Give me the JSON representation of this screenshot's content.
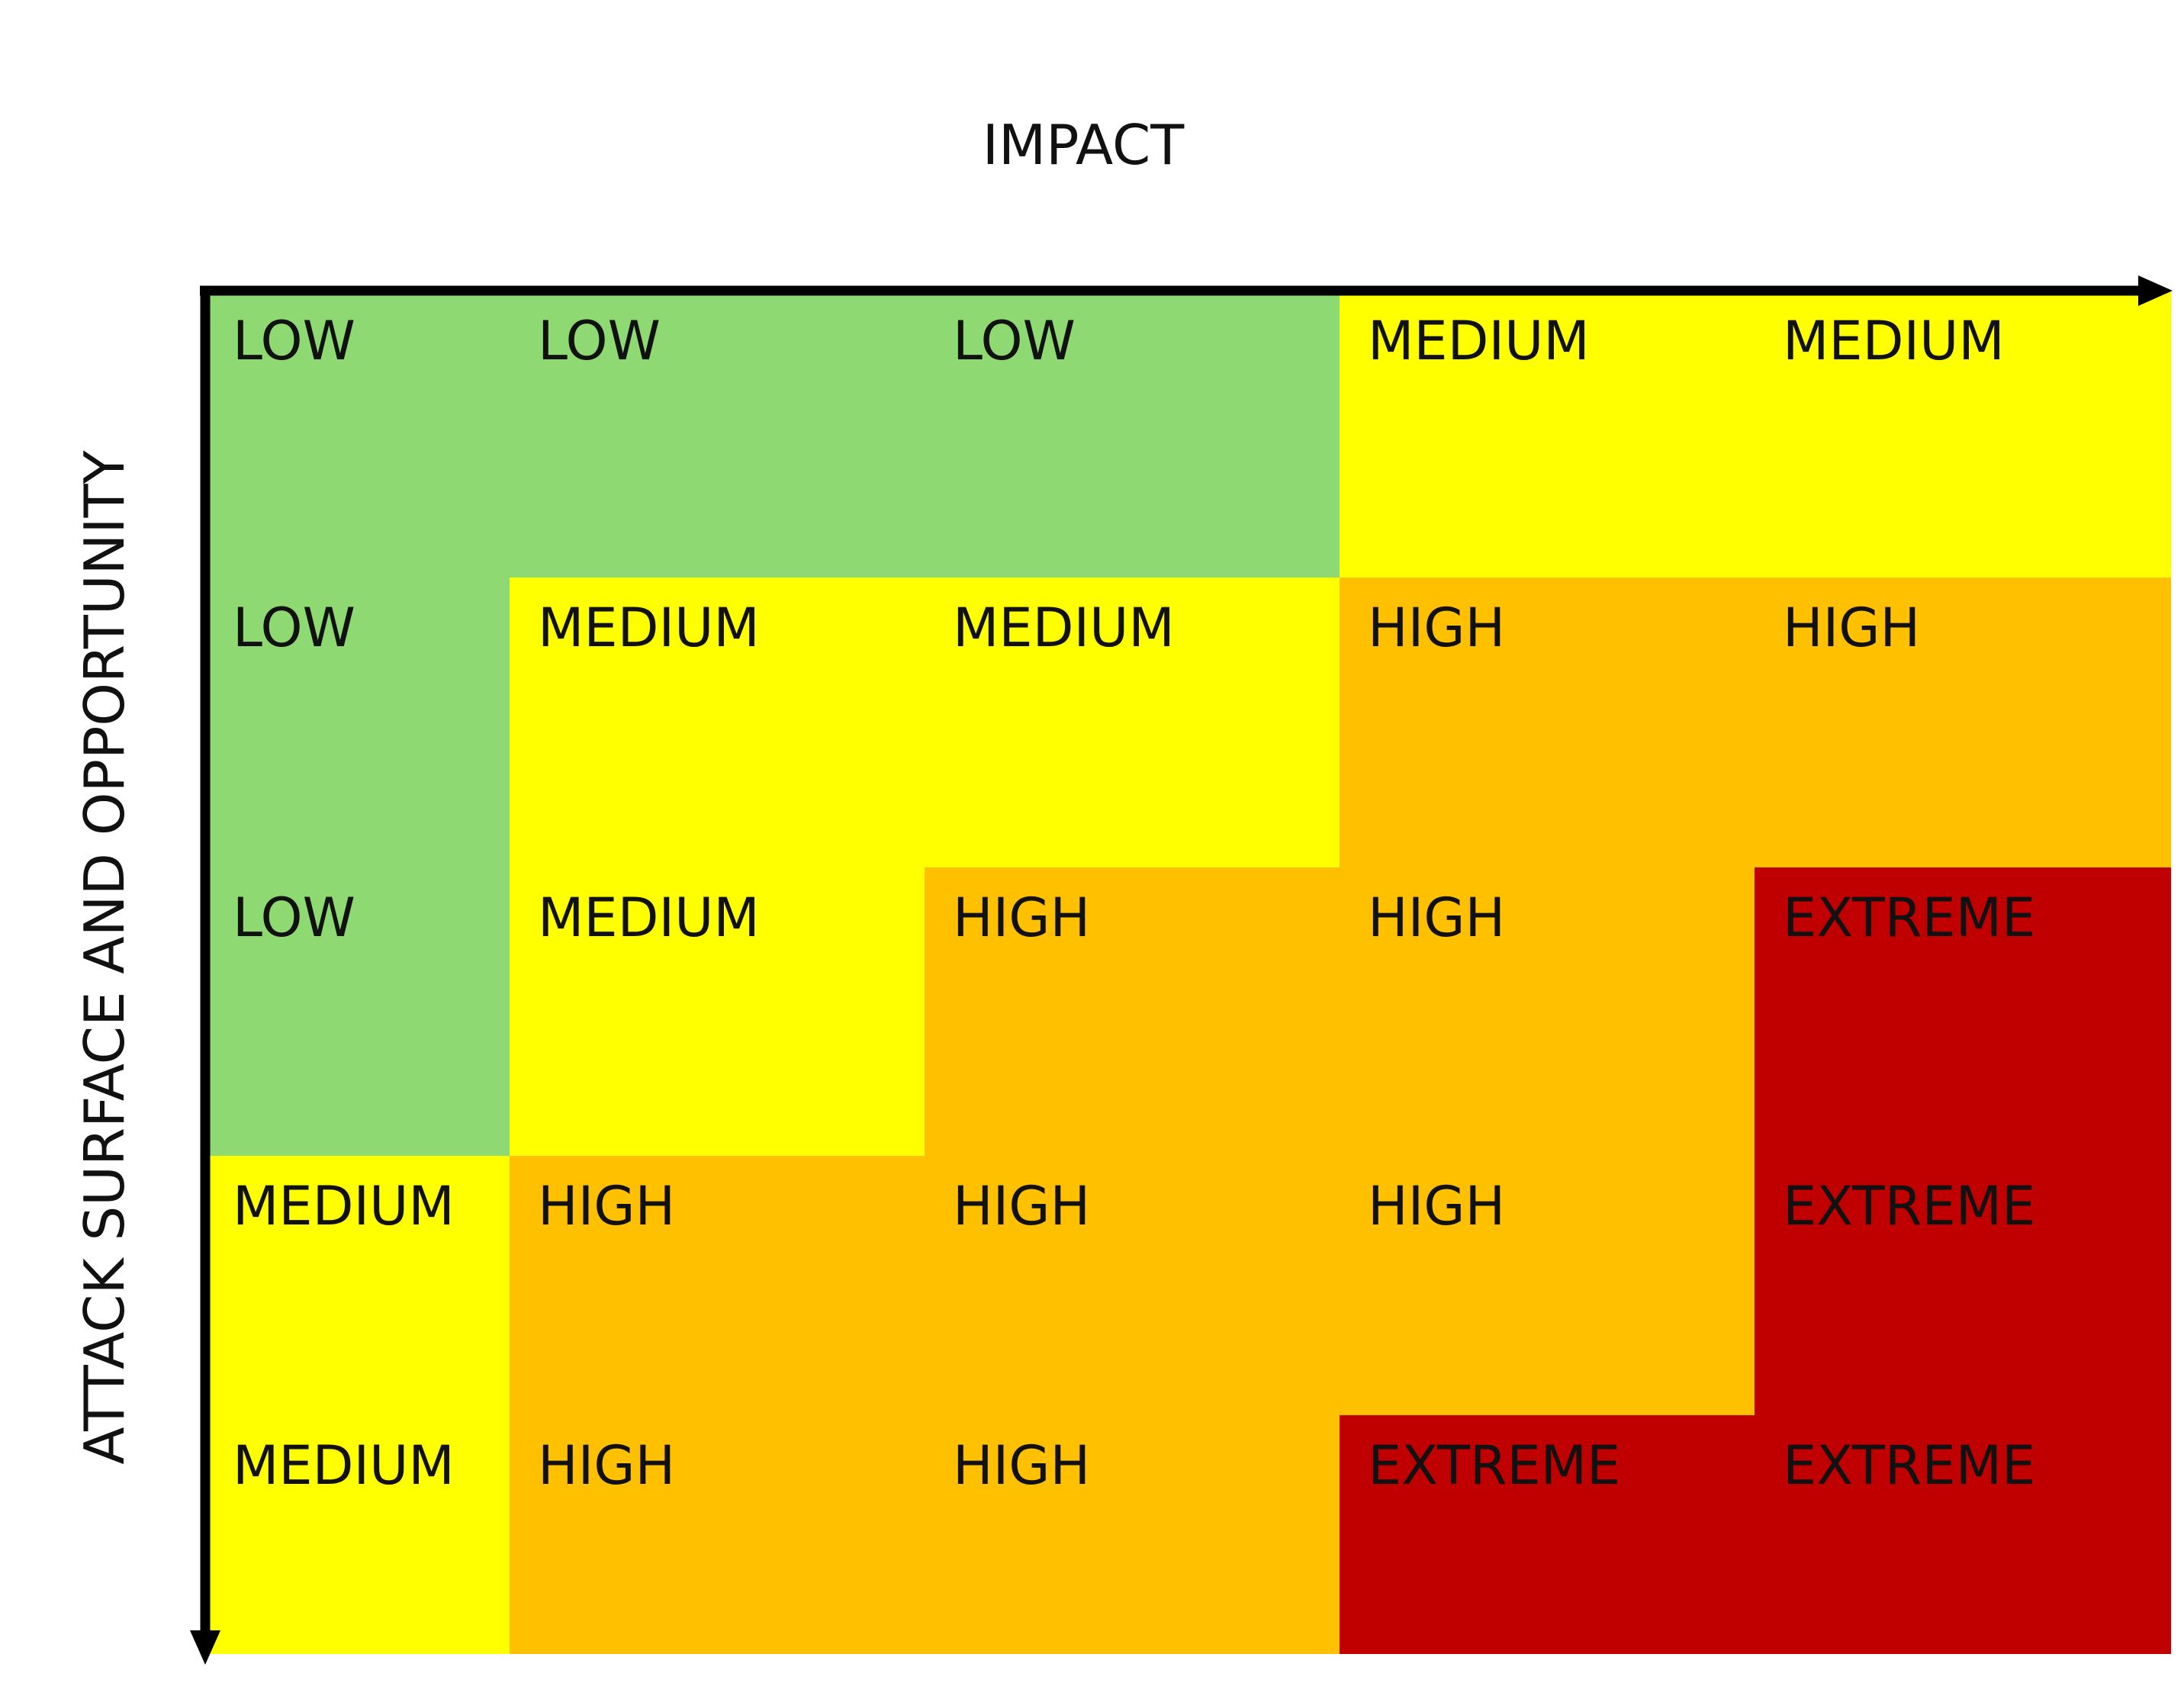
{
  "x_axis_label": "IMPACT",
  "y_axis_label": "ATTACK SURFACE AND OPPORTUNITY",
  "levels": {
    "LOW": "#8fd973",
    "MEDIUM": "#ffff00",
    "HIGH": "#ffc000",
    "EXTREME": "#c00000"
  },
  "rows": [
    [
      "LOW",
      "LOW",
      "LOW",
      "MEDIUM",
      "MEDIUM"
    ],
    [
      "LOW",
      "MEDIUM",
      "MEDIUM",
      "HIGH",
      "HIGH"
    ],
    [
      "LOW",
      "MEDIUM",
      "HIGH",
      "HIGH",
      "EXTREME"
    ],
    [
      "MEDIUM",
      "HIGH",
      "HIGH",
      "HIGH",
      "EXTREME"
    ],
    [
      "MEDIUM",
      "HIGH",
      "HIGH",
      "EXTREME",
      "EXTREME"
    ]
  ]
}
